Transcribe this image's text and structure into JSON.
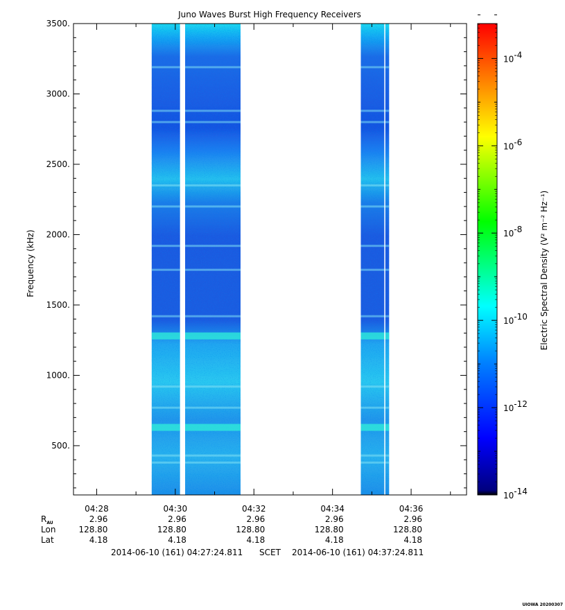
{
  "chart_data": {
    "type": "heatmap",
    "title": "Juno Waves Burst High Frequency Receivers",
    "ylabel": "Frequency (kHz)",
    "ylim": [
      150,
      3500
    ],
    "y_ticks": [
      "3500.",
      "3000.",
      "2500.",
      "2000.",
      "1500.",
      "1000.",
      "500."
    ],
    "y_tick_values": [
      3500,
      3000,
      2500,
      2000,
      1500,
      1000,
      500
    ],
    "x_ticks": [
      "04:28",
      "04:30",
      "04:32",
      "04:34",
      "04:36"
    ],
    "x_tick_minutes": [
      28,
      30,
      32,
      34,
      36
    ],
    "xlim_minutes": [
      27.41,
      37.41
    ],
    "data_intervals_minutes": [
      [
        29.4,
        30.12
      ],
      [
        30.25,
        31.66
      ],
      [
        34.72,
        35.44
      ]
    ],
    "gap_lines_minutes": [
      35.33
    ],
    "emission_bands_khz": [
      3190,
      2880,
      2800,
      2350,
      2200,
      1920,
      1750,
      1420,
      1280,
      920,
      770,
      630,
      430,
      380
    ],
    "colorbar": {
      "label": "Electric Spectral Density (V² m⁻² Hz⁻¹)",
      "log_min": -14,
      "log_max": -3.2,
      "tick_labels": [
        {
          "base": "10",
          "exp": "-4",
          "value": -4
        },
        {
          "base": "10",
          "exp": "-6",
          "value": -6
        },
        {
          "base": "10",
          "exp": "-8",
          "value": -8
        },
        {
          "base": "10",
          "exp": "-10",
          "value": -10
        },
        {
          "base": "10",
          "exp": "-12",
          "value": -12
        },
        {
          "base": "10",
          "exp": "-14",
          "value": -14
        }
      ]
    },
    "ephemeris": {
      "labels": [
        "R",
        "Lon",
        "Lat"
      ],
      "r_subscript": "AU",
      "r_au": [
        "2.96",
        "2.96",
        "2.96",
        "2.96",
        "2.96"
      ],
      "lon": [
        "128.80",
        "128.80",
        "128.80",
        "128.80",
        "128.80"
      ],
      "lat": [
        "4.18",
        "4.18",
        "4.18",
        "4.18",
        "4.18"
      ]
    },
    "time_range": {
      "start": "2014-06-10 (161) 04:27:24.811",
      "frame": "SCET",
      "end": "2014-06-10 (161) 04:37:24.811"
    },
    "credit": "UIOWA 20200307"
  }
}
